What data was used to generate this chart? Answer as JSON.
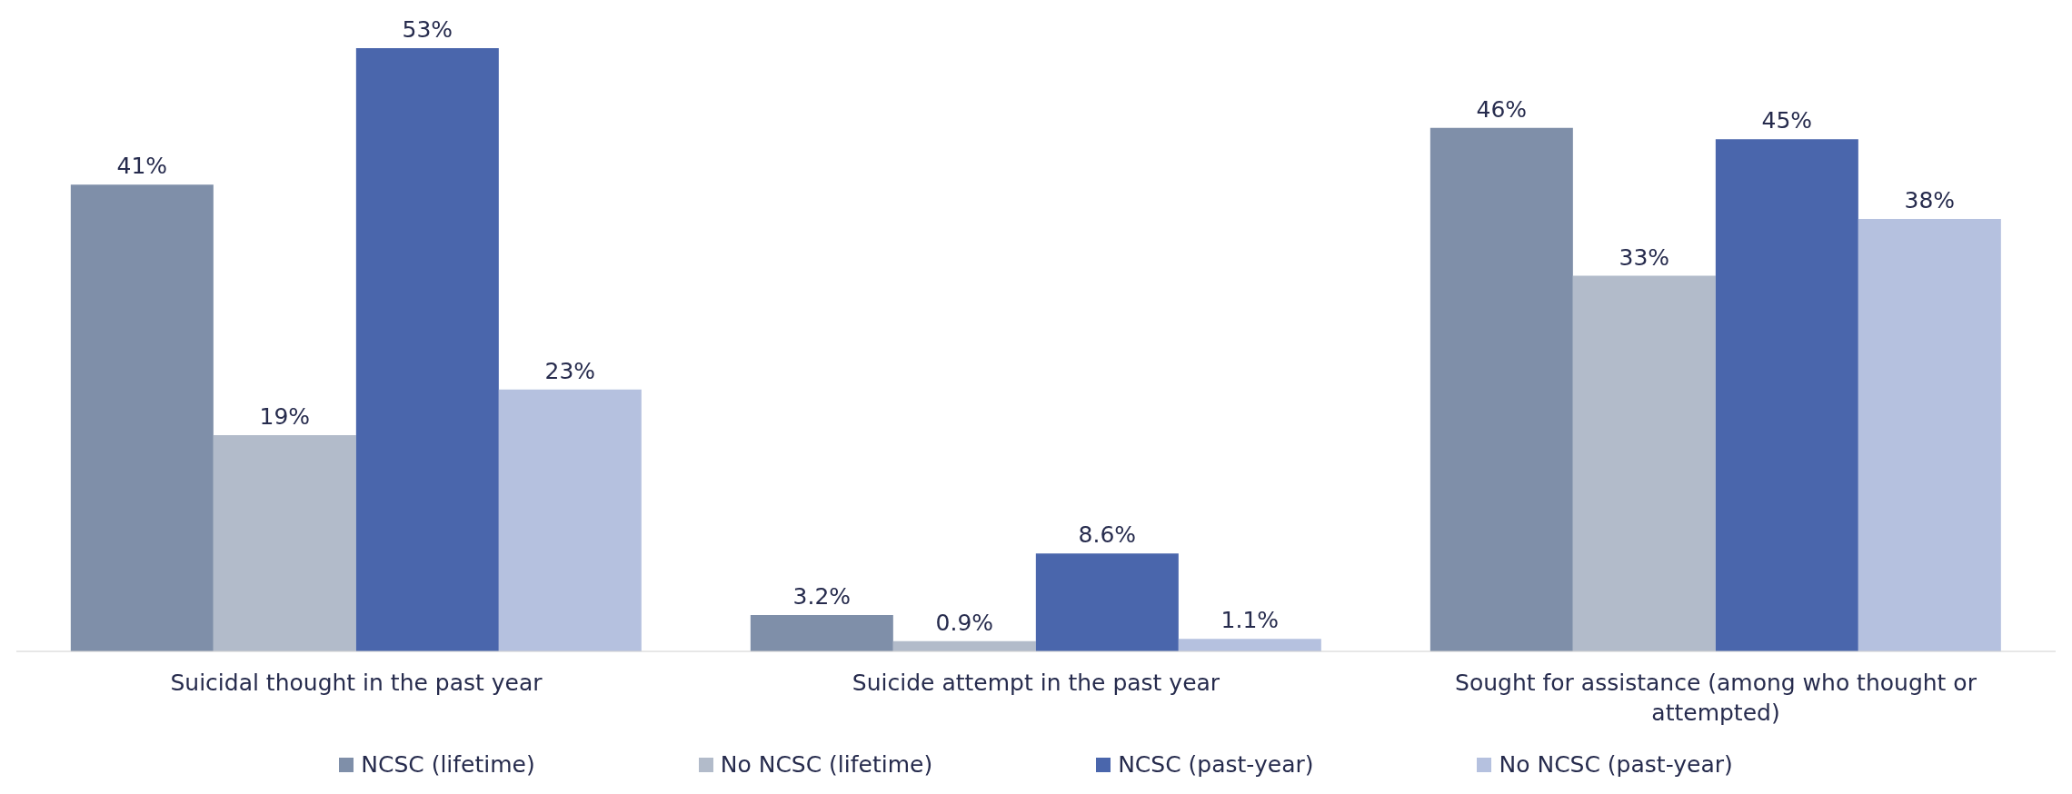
{
  "chart_data": {
    "type": "bar",
    "categories": [
      "Suicidal thought in the past year",
      "Suicide attempt in the past year",
      "Sought for assistance (among who thought or attempted)"
    ],
    "series": [
      {
        "name": "NCSC (lifetime)",
        "color": "#7f8fa9",
        "values": [
          41,
          3.2,
          46
        ],
        "value_labels": [
          "41%",
          "3.2%",
          "46%"
        ]
      },
      {
        "name": "No NCSC (lifetime)",
        "color": "#b2bbca",
        "values": [
          19,
          0.9,
          33
        ],
        "value_labels": [
          "19%",
          "0.9%",
          "33%"
        ]
      },
      {
        "name": "NCSC (past-year)",
        "color": "#4a66ac",
        "values": [
          53,
          8.6,
          45
        ],
        "value_labels": [
          "53%",
          "8.6%",
          "45%"
        ]
      },
      {
        "name": "No NCSC (past-year)",
        "color": "#b5c1df",
        "values": [
          23,
          1.1,
          38
        ],
        "value_labels": [
          "23%",
          "1.1%",
          "38%"
        ]
      }
    ],
    "grid": false,
    "legend": "bottom"
  }
}
